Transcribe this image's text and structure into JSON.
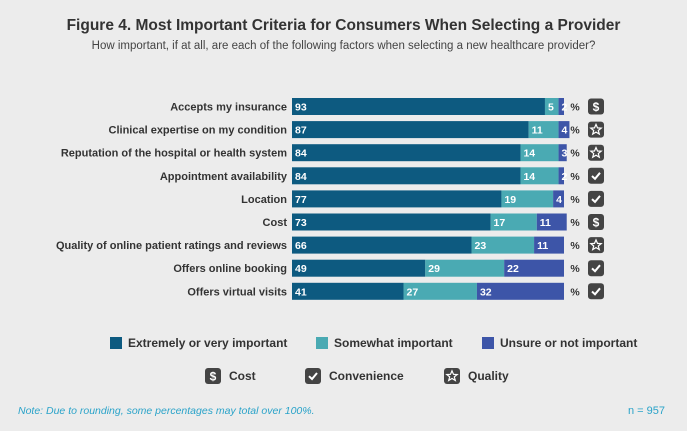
{
  "figure": {
    "title": "Figure 4. Most Important Criteria for Consumers When Selecting a Provider",
    "subtitle": "How important, if at all, are each of the following factors when selecting a new healthcare provider?"
  },
  "chart_data": {
    "type": "bar",
    "orientation": "horizontal",
    "stacked": true,
    "categories": [
      "Accepts my insurance",
      "Clinical expertise on my condition",
      "Reputation of the hospital or health system",
      "Appointment availability",
      "Location",
      "Cost",
      "Quality of online patient ratings and reviews",
      "Offers online booking",
      "Offers virtual visits"
    ],
    "series": [
      {
        "name": "Extremely or very important",
        "color": "#0d5a80",
        "values": [
          93,
          87,
          84,
          84,
          77,
          73,
          66,
          49,
          41
        ]
      },
      {
        "name": "Somewhat important",
        "color": "#4aaab3",
        "values": [
          5,
          11,
          14,
          14,
          19,
          17,
          23,
          29,
          27
        ]
      },
      {
        "name": "Unsure or not important",
        "color": "#3d55a8",
        "values": [
          2,
          4,
          3,
          2,
          4,
          11,
          11,
          22,
          32
        ]
      }
    ],
    "unit_label": "%",
    "row_icons": [
      "dollar-icon",
      "star-icon",
      "star-icon",
      "check-icon",
      "check-icon",
      "dollar-icon",
      "star-icon",
      "check-icon",
      "check-icon"
    ],
    "xlim": [
      0,
      100
    ]
  },
  "category_legend": [
    {
      "icon": "dollar-icon",
      "label": "Cost"
    },
    {
      "icon": "check-icon",
      "label": "Convenience"
    },
    {
      "icon": "star-icon",
      "label": "Quality"
    }
  ],
  "footer": {
    "note": "Note: Due to rounding, some percentages may total over 100%.",
    "n": "n = 957"
  }
}
